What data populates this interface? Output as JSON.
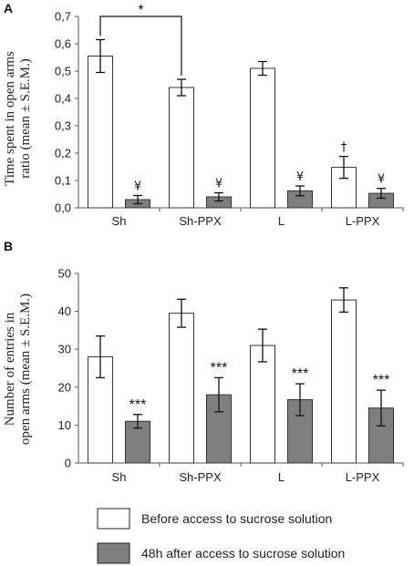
{
  "chart_data": [
    {
      "type": "bar",
      "panel_label": "A",
      "ylabel_line1": "Time spent in open arms",
      "ylabel_line2": "ratio (mean ± S.E.M.)",
      "categories": [
        "Sh",
        "Sh-PPX",
        "L",
        "L-PPX"
      ],
      "ylim": [
        0,
        0.7
      ],
      "yticks": [
        "0,0",
        "0,1",
        "0,2",
        "0,3",
        "0,4",
        "0,5",
        "0,6",
        "0,7"
      ],
      "series": [
        {
          "name": "Before access to sucrose solution",
          "color": "#ffffff",
          "values": [
            0.555,
            0.44,
            0.51,
            0.148
          ],
          "errors": [
            0.06,
            0.03,
            0.025,
            0.04
          ]
        },
        {
          "name": "48h after access to sucrose solution",
          "color": "#7f7f7f",
          "values": [
            0.03,
            0.04,
            0.062,
            0.053
          ],
          "errors": [
            0.015,
            0.015,
            0.018,
            0.018
          ]
        }
      ],
      "annotations": [
        {
          "series": 1,
          "index": 0,
          "text": "¥"
        },
        {
          "series": 1,
          "index": 1,
          "text": "¥"
        },
        {
          "series": 1,
          "index": 2,
          "text": "¥"
        },
        {
          "series": 1,
          "index": 3,
          "text": "¥"
        },
        {
          "series": 0,
          "index": 3,
          "text": "†"
        }
      ],
      "bracket": {
        "from": 0,
        "to": 1,
        "text": "*"
      }
    },
    {
      "type": "bar",
      "panel_label": "B",
      "ylabel_line1": "Number of entries in",
      "ylabel_line2": "open arms (mean ± S.E.M.)",
      "categories": [
        "Sh",
        "Sh-PPX",
        "L",
        "L-PPX"
      ],
      "ylim": [
        0,
        50
      ],
      "yticks": [
        "0",
        "10",
        "20",
        "30",
        "40",
        "50"
      ],
      "series": [
        {
          "name": "Before access to sucrose solution",
          "color": "#ffffff",
          "values": [
            28,
            39.5,
            31,
            43
          ],
          "errors": [
            5.5,
            3.7,
            4.3,
            3.2
          ]
        },
        {
          "name": "48h after access to sucrose solution",
          "color": "#7f7f7f",
          "values": [
            11,
            18,
            16.7,
            14.5
          ],
          "errors": [
            1.8,
            4.5,
            4.2,
            4.7
          ]
        }
      ],
      "annotations": [
        {
          "series": 1,
          "index": 0,
          "text": "***"
        },
        {
          "series": 1,
          "index": 1,
          "text": "***"
        },
        {
          "series": 1,
          "index": 2,
          "text": "***"
        },
        {
          "series": 1,
          "index": 3,
          "text": "***"
        }
      ]
    }
  ],
  "legend": [
    {
      "label": "Before access to sucrose solution",
      "color": "#ffffff"
    },
    {
      "label": "48h after access to sucrose solution",
      "color": "#7f7f7f"
    }
  ]
}
